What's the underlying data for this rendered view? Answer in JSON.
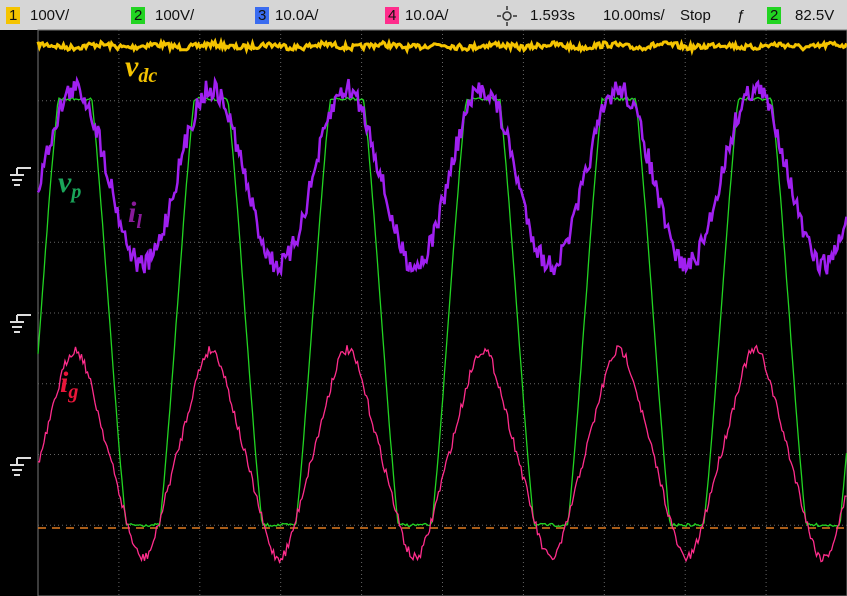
{
  "header": {
    "channels": [
      {
        "number": "1",
        "scale": "100V/"
      },
      {
        "number": "2",
        "scale": "100V/"
      },
      {
        "number": "3",
        "scale": "10.0A/"
      },
      {
        "number": "4",
        "scale": "10.0A/"
      }
    ],
    "time_position": "1.593s",
    "time_scale": "10.00ms/",
    "status": "Stop",
    "trigger_symbol": "ƒ",
    "trigger_channel": "2",
    "trigger_level": "82.5V"
  },
  "traces": [
    {
      "base": "v",
      "sub": "dc"
    },
    {
      "base": "v",
      "sub": "p"
    },
    {
      "base": "i",
      "sub": "l"
    },
    {
      "base": "i",
      "sub": "g"
    }
  ]
}
